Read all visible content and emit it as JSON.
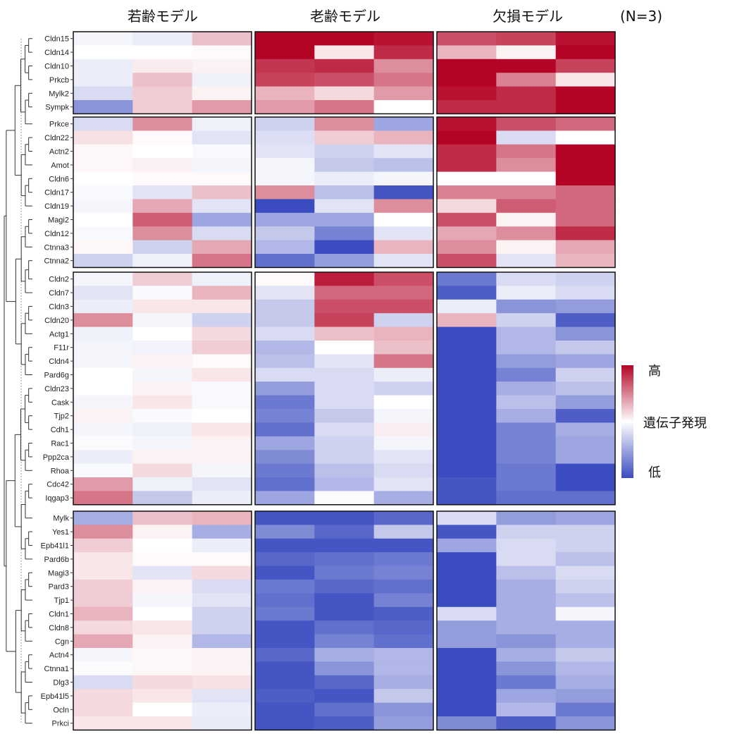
{
  "chart_data": {
    "type": "heatmap",
    "title": "",
    "columns": [
      "若齢モデル",
      "老齢モデル",
      "欠損モデル"
    ],
    "n_label": "(N=3)",
    "replicates_per_group": 3,
    "value_scale": [
      -1,
      1
    ],
    "colors": {
      "low": "#3b4cc0",
      "mid": "#ffffff",
      "high": "#b40426",
      "border": "#111111",
      "dendrogram": "#333333"
    },
    "legend": {
      "title": "遺伝子発現",
      "high_label": "高",
      "low_label": "低"
    },
    "clusters": [
      {
        "rows": [
          {
            "gene": "Cldn15",
            "values": [
              -0.05,
              -0.1,
              0.25,
              1.0,
              1.0,
              0.95,
              0.7,
              0.75,
              0.95
            ]
          },
          {
            "gene": "Cldn14",
            "values": [
              0.0,
              0.0,
              0.02,
              1.0,
              0.1,
              0.85,
              0.3,
              0.05,
              1.0
            ]
          },
          {
            "gene": "Cldn10",
            "values": [
              -0.1,
              0.08,
              0.05,
              0.8,
              0.85,
              0.45,
              1.0,
              1.0,
              0.75
            ]
          },
          {
            "gene": "Prkcb",
            "values": [
              -0.1,
              0.25,
              -0.08,
              0.75,
              0.7,
              0.55,
              1.0,
              0.5,
              0.1
            ]
          },
          {
            "gene": "Mylk2",
            "values": [
              -0.2,
              0.2,
              0.05,
              0.3,
              0.15,
              0.4,
              0.95,
              0.85,
              1.0
            ]
          },
          {
            "gene": "Sympk",
            "values": [
              -0.6,
              0.2,
              0.4,
              0.4,
              0.55,
              0.0,
              0.85,
              0.85,
              1.0
            ]
          }
        ]
      },
      {
        "rows": [
          {
            "gene": "Prkce",
            "values": [
              -0.2,
              0.45,
              -0.08,
              -0.25,
              0.45,
              -0.5,
              0.95,
              0.7,
              0.6
            ]
          },
          {
            "gene": "Cldn22",
            "values": [
              0.12,
              0.02,
              -0.15,
              -0.18,
              0.2,
              0.3,
              1.0,
              -0.2,
              0.0
            ]
          },
          {
            "gene": "Actn2",
            "values": [
              0.03,
              0.0,
              -0.03,
              -0.15,
              -0.25,
              -0.15,
              0.85,
              0.55,
              1.0
            ]
          },
          {
            "gene": "Amot",
            "values": [
              0.03,
              0.06,
              -0.05,
              -0.05,
              -0.3,
              -0.35,
              0.85,
              0.45,
              1.0
            ]
          },
          {
            "gene": "Cldn6",
            "values": [
              0.0,
              0.02,
              0.02,
              -0.05,
              -0.1,
              -0.05,
              0.0,
              0.0,
              1.0
            ]
          },
          {
            "gene": "Cldn17",
            "values": [
              -0.03,
              -0.15,
              0.25,
              0.45,
              -0.35,
              -0.95,
              0.5,
              0.5,
              0.6
            ]
          },
          {
            "gene": "Cldn19",
            "values": [
              -0.05,
              0.35,
              -0.15,
              -1.0,
              -0.15,
              0.45,
              0.15,
              0.65,
              0.6
            ]
          },
          {
            "gene": "Magi2",
            "values": [
              0.0,
              0.65,
              -0.5,
              -0.5,
              -0.5,
              0.0,
              0.7,
              0.05,
              0.6
            ]
          },
          {
            "gene": "Cldn12",
            "values": [
              -0.03,
              0.45,
              -0.2,
              -0.3,
              -0.7,
              -0.15,
              0.35,
              0.45,
              0.85
            ]
          },
          {
            "gene": "Ctnna3",
            "values": [
              0.03,
              -0.25,
              0.35,
              -0.4,
              -1.0,
              0.3,
              0.45,
              0.05,
              0.35
            ]
          },
          {
            "gene": "Ctnna2",
            "values": [
              -0.25,
              -0.08,
              0.55,
              -0.8,
              -0.55,
              -0.15,
              0.7,
              -0.15,
              0.3
            ]
          }
        ]
      },
      {
        "rows": [
          {
            "gene": "Cldn2",
            "values": [
              -0.05,
              0.2,
              -0.08,
              0.02,
              0.9,
              0.7,
              -0.75,
              -0.2,
              -0.25
            ]
          },
          {
            "gene": "Cldn7",
            "values": [
              -0.15,
              -0.03,
              0.3,
              -0.15,
              0.6,
              0.6,
              -0.9,
              -0.1,
              -0.2
            ]
          },
          {
            "gene": "Cldn3",
            "values": [
              -0.1,
              0.1,
              0.1,
              -0.3,
              0.7,
              0.7,
              -0.1,
              -0.6,
              -0.55
            ]
          },
          {
            "gene": "Cldn20",
            "values": [
              0.45,
              -0.05,
              -0.25,
              -0.3,
              0.75,
              -0.25,
              0.3,
              -0.25,
              -0.9
            ]
          },
          {
            "gene": "Actg1",
            "values": [
              -0.08,
              0.0,
              0.15,
              -0.2,
              0.25,
              0.3,
              -1.0,
              -0.4,
              -0.6
            ]
          },
          {
            "gene": "F11r",
            "values": [
              -0.05,
              -0.07,
              0.2,
              -0.4,
              0.0,
              0.25,
              -1.0,
              -0.4,
              -0.3
            ]
          },
          {
            "gene": "Cldn4",
            "values": [
              -0.05,
              0.05,
              0.02,
              -0.35,
              -0.15,
              0.55,
              -1.0,
              -0.55,
              -0.5
            ]
          },
          {
            "gene": "Pard6g",
            "values": [
              0.0,
              -0.05,
              0.1,
              -0.2,
              -0.2,
              -0.1,
              -1.0,
              -0.7,
              -0.25
            ]
          },
          {
            "gene": "Cldn23",
            "values": [
              0.0,
              0.05,
              -0.03,
              -0.55,
              -0.2,
              -0.25,
              -1.0,
              -0.45,
              -0.35
            ]
          },
          {
            "gene": "Cask",
            "values": [
              -0.05,
              0.1,
              -0.03,
              -0.75,
              -0.2,
              0.0,
              -1.0,
              -0.35,
              -0.55
            ]
          },
          {
            "gene": "Tjp2",
            "values": [
              0.05,
              -0.03,
              0.0,
              -0.7,
              -0.3,
              -0.05,
              -1.0,
              -0.45,
              -0.9
            ]
          },
          {
            "gene": "Cdh1",
            "values": [
              -0.05,
              -0.08,
              0.1,
              -0.8,
              -0.2,
              0.07,
              -1.0,
              -0.7,
              -0.45
            ]
          },
          {
            "gene": "Rac1",
            "values": [
              -0.02,
              -0.05,
              0.05,
              -0.5,
              -0.25,
              -0.05,
              -1.0,
              -0.7,
              -0.5
            ]
          },
          {
            "gene": "Ppp2ca",
            "values": [
              -0.1,
              0.05,
              0.05,
              -0.65,
              -0.25,
              -0.15,
              -1.0,
              -0.7,
              -0.5
            ]
          },
          {
            "gene": "Rhoa",
            "values": [
              -0.03,
              0.15,
              -0.05,
              -0.75,
              -0.35,
              -0.2,
              -1.0,
              -0.75,
              -1.0
            ]
          },
          {
            "gene": "Cdc42",
            "values": [
              0.4,
              -0.08,
              -0.15,
              -0.8,
              -0.4,
              -0.15,
              -0.95,
              -0.75,
              -1.0
            ]
          },
          {
            "gene": "Iqgap3",
            "values": [
              0.55,
              -0.3,
              -0.1,
              -0.5,
              -0.02,
              -0.45,
              -0.95,
              -0.8,
              -0.8
            ]
          }
        ]
      },
      {
        "rows": [
          {
            "gene": "Mylk",
            "values": [
              -0.45,
              0.25,
              0.3,
              -0.95,
              -0.95,
              -0.85,
              -0.2,
              -0.55,
              -0.5
            ]
          },
          {
            "gene": "Yes1",
            "values": [
              0.45,
              0.05,
              -0.45,
              -0.65,
              -0.85,
              -0.3,
              -0.95,
              -0.25,
              -0.25
            ]
          },
          {
            "gene": "Epb41l1",
            "values": [
              0.2,
              0.0,
              -0.1,
              -0.95,
              -0.95,
              -0.95,
              -0.5,
              -0.2,
              -0.25
            ]
          },
          {
            "gene": "Pard6b",
            "values": [
              0.1,
              0.02,
              0.02,
              -0.85,
              -0.8,
              -0.75,
              -1.0,
              -0.2,
              -0.35
            ]
          },
          {
            "gene": "Magi3",
            "values": [
              0.1,
              -0.15,
              0.15,
              -0.95,
              -0.75,
              -0.7,
              -1.0,
              -0.35,
              -0.2
            ]
          },
          {
            "gene": "Pard3",
            "values": [
              0.2,
              0.05,
              -0.2,
              -0.75,
              -0.85,
              -0.8,
              -1.0,
              -0.45,
              -0.25
            ]
          },
          {
            "gene": "Tjp1",
            "values": [
              0.2,
              -0.05,
              -0.15,
              -0.8,
              -0.95,
              -0.7,
              -1.0,
              -0.45,
              -0.35
            ]
          },
          {
            "gene": "Cldn1",
            "values": [
              0.3,
              0.0,
              -0.25,
              -0.75,
              -0.95,
              -0.9,
              -0.2,
              -0.45,
              -0.05
            ]
          },
          {
            "gene": "Cldn8",
            "values": [
              0.15,
              0.1,
              -0.25,
              -0.95,
              -0.8,
              -0.85,
              -0.55,
              -0.45,
              -0.45
            ]
          },
          {
            "gene": "Cgn",
            "values": [
              0.35,
              0.05,
              -0.4,
              -0.95,
              -0.7,
              -0.8,
              -0.55,
              -0.6,
              -0.45
            ]
          },
          {
            "gene": "Actn4",
            "values": [
              -0.05,
              0.03,
              0.05,
              -0.85,
              -0.45,
              -0.4,
              -1.0,
              -0.45,
              -0.3
            ]
          },
          {
            "gene": "Ctnna1",
            "values": [
              -0.02,
              0.03,
              0.05,
              -0.95,
              -0.6,
              -0.4,
              -1.0,
              -0.6,
              -0.4
            ]
          },
          {
            "gene": "Dlg3",
            "values": [
              -0.2,
              0.15,
              0.12,
              -0.95,
              -0.85,
              -0.45,
              -1.0,
              -0.75,
              -0.45
            ]
          },
          {
            "gene": "Epb41l5",
            "values": [
              0.15,
              0.1,
              -0.15,
              -0.9,
              -0.95,
              -0.3,
              -1.0,
              -0.5,
              -0.55
            ]
          },
          {
            "gene": "Ocln",
            "values": [
              0.15,
              0.0,
              -0.1,
              -0.95,
              -0.8,
              -0.6,
              -1.0,
              -0.4,
              -0.75
            ]
          },
          {
            "gene": "Prkci",
            "values": [
              0.1,
              0.1,
              -0.12,
              -0.95,
              -0.9,
              -0.55,
              -0.65,
              -0.9,
              -0.6
            ]
          }
        ]
      }
    ]
  }
}
